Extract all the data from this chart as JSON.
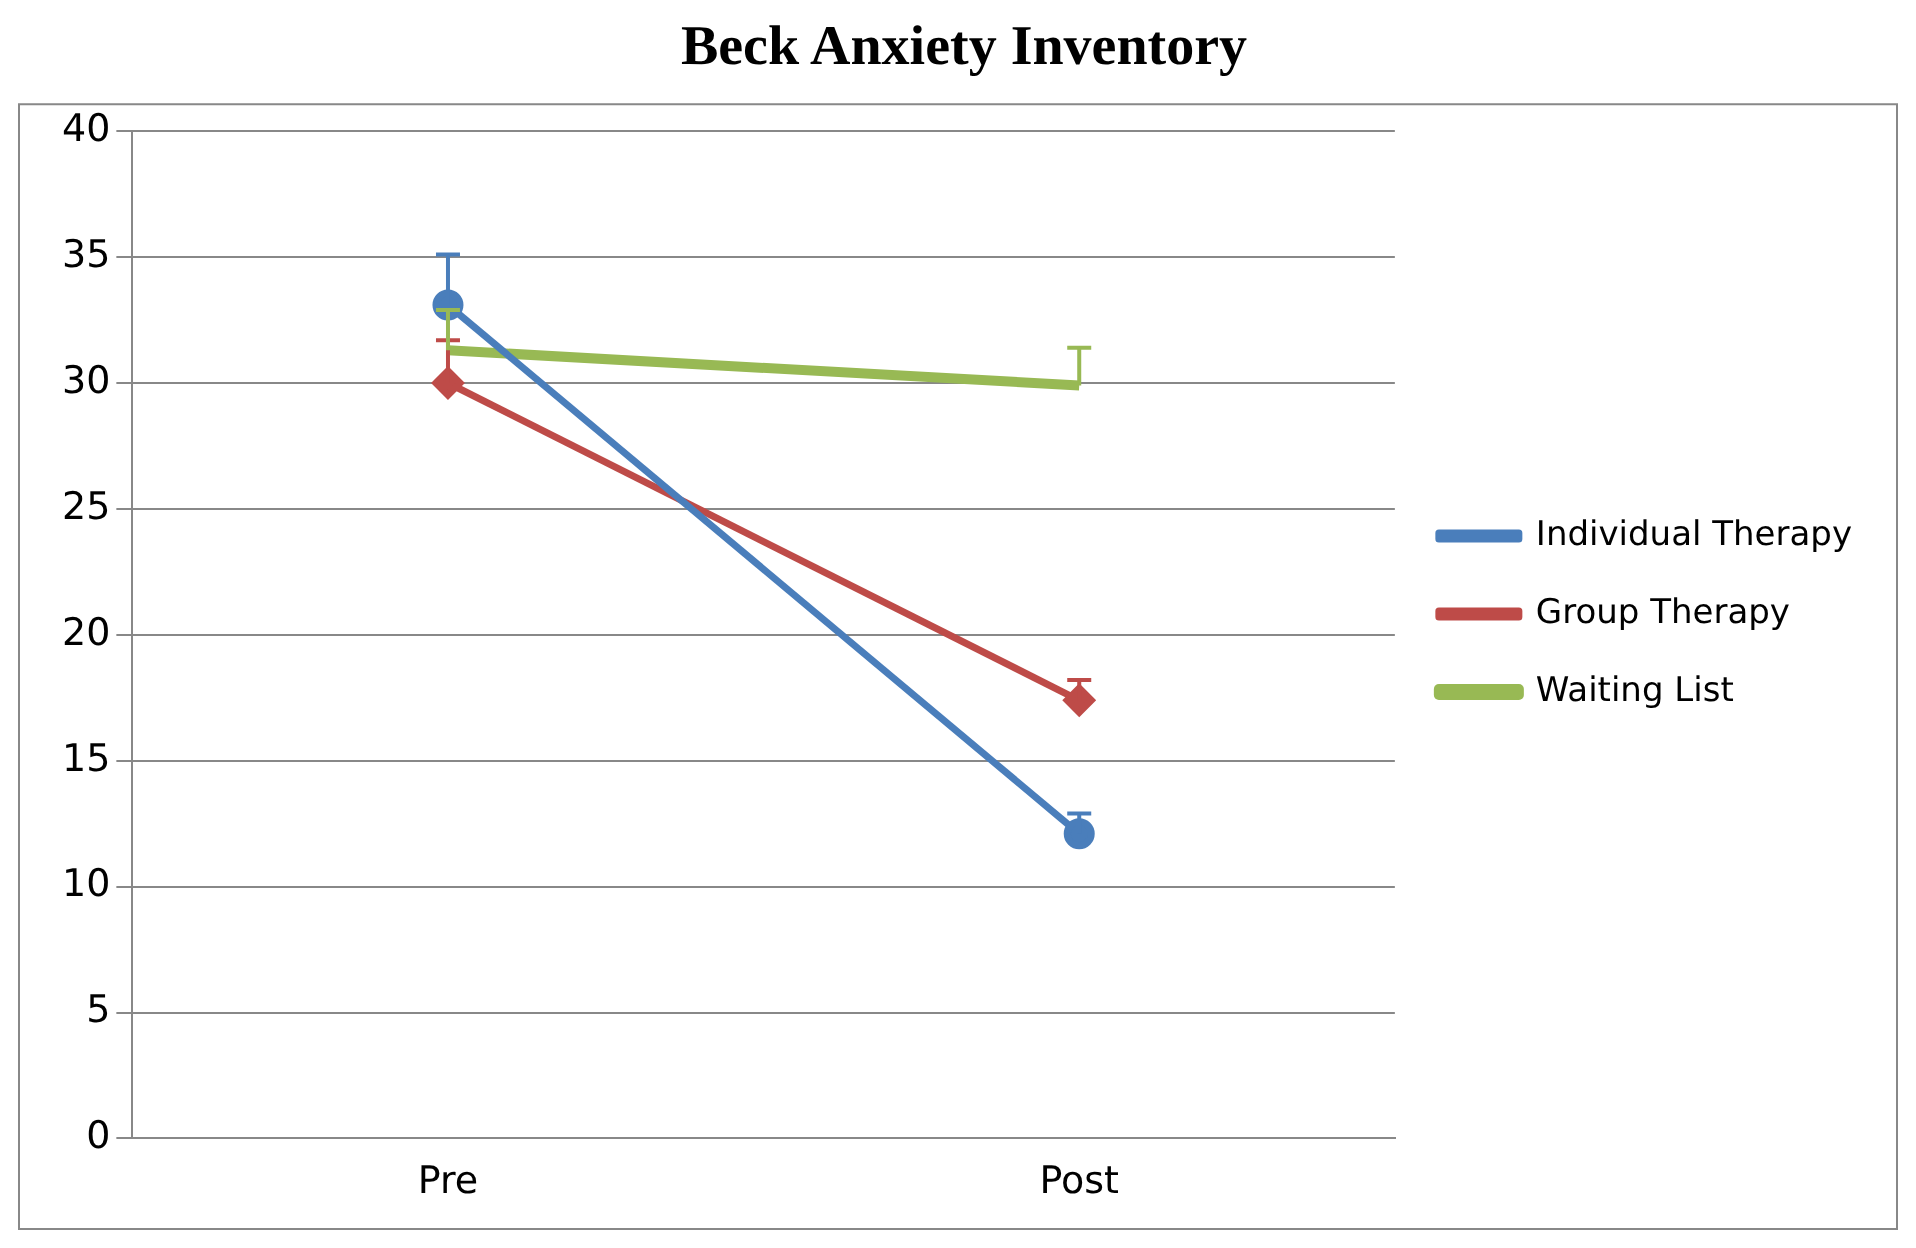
{
  "chart_data": {
    "type": "line",
    "title": "Beck Anxiety Inventory",
    "categories": [
      "Pre",
      "Post"
    ],
    "series": [
      {
        "name": "Individual Therapy",
        "color": "#4a7ebb",
        "values": [
          33.1,
          12.1
        ],
        "errors": [
          [
            33.1,
            35.1
          ],
          [
            12.1,
            12.9
          ]
        ],
        "marker": "circle"
      },
      {
        "name": "Group Therapy",
        "color": "#be4b48",
        "values": [
          30,
          17.4
        ],
        "errors": [
          [
            30,
            31.7
          ],
          [
            17.4,
            18.2
          ]
        ],
        "marker": "diamond"
      },
      {
        "name": "Waiting List",
        "color": "#98b954",
        "values": [
          31.3,
          29.9
        ],
        "errors": [
          [
            31.3,
            32.9
          ],
          [
            29.9,
            31.4
          ]
        ],
        "marker": "none"
      }
    ],
    "ylim": [
      0,
      40
    ],
    "yticks": [
      0,
      5,
      10,
      15,
      20,
      25,
      30,
      35,
      40
    ],
    "grid": "y",
    "legend": "right"
  }
}
